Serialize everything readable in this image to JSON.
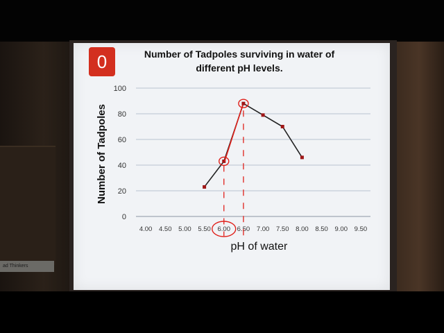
{
  "slide": {
    "badge_text": "0",
    "title_line1": "Number of Tadpoles surviving in water of",
    "title_line2": "different pH levels.",
    "background_sign_text": "ad Thinkers"
  },
  "colors": {
    "badge": "#d32f1f",
    "series": "#222222",
    "marker": "#a01818",
    "annotation": "#e0201a",
    "grid": "#b9c3d0"
  },
  "chart_data": {
    "type": "line",
    "xlabel": "pH of water",
    "ylabel": "Number of Tadpoles",
    "x_ticks": [
      "4.00",
      "4.50",
      "5.00",
      "5.50",
      "6.00",
      "6.50",
      "7.00",
      "7.50",
      "8.00",
      "8.50",
      "9.00",
      "9.50"
    ],
    "y_ticks": [
      "0",
      "20",
      "40",
      "60",
      "80",
      "100"
    ],
    "xlim": [
      3.75,
      9.75
    ],
    "ylim": [
      0,
      100
    ],
    "grid": true,
    "series": [
      {
        "x": [
          5.5,
          6.0,
          6.5,
          7.0,
          7.5,
          8.0
        ],
        "y": [
          23,
          43,
          88,
          79,
          70,
          46
        ]
      }
    ],
    "annotations": {
      "circled_points": [
        [
          6.0,
          43
        ],
        [
          6.5,
          88
        ]
      ],
      "circled_tick": "6.00",
      "dashed_verticals": [
        6.0,
        6.5
      ]
    }
  }
}
